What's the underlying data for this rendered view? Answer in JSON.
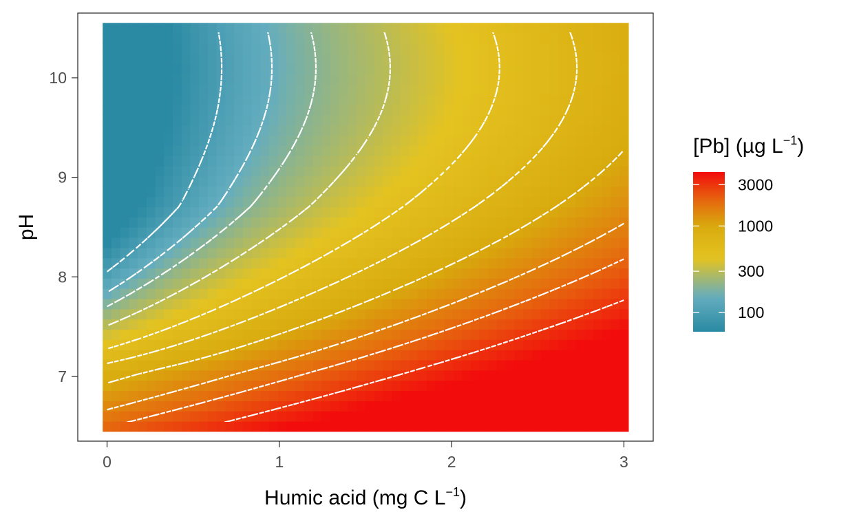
{
  "chart_data": {
    "type": "heatmap",
    "xlabel": "Humic acid (mg C L",
    "xlabel_sup": "−1",
    "xlabel_tail": ")",
    "ylabel": "pH",
    "xlim": [
      -0.17,
      3.17
    ],
    "ylim": [
      6.35,
      10.65
    ],
    "data_x_range": [
      0,
      3
    ],
    "data_y_range": [
      6.5,
      10.5
    ],
    "x_ticks": [
      0,
      1,
      2,
      3
    ],
    "x_tick_labels": [
      "0",
      "1",
      "2",
      "3"
    ],
    "y_ticks": [
      7,
      8,
      9,
      10
    ],
    "y_tick_labels": [
      "7",
      "8",
      "9",
      "10"
    ],
    "color_scale": "log",
    "color_stops": [
      {
        "value": 60,
        "color": "#2a8aa3"
      },
      {
        "value": 150,
        "color": "#64adbf"
      },
      {
        "value": 420,
        "color": "#e4c321"
      },
      {
        "value": 1000,
        "color": "#d8aa0e"
      },
      {
        "value": 2000,
        "color": "#e6660e"
      },
      {
        "value": 4200,
        "color": "#f20c0c"
      }
    ],
    "contour_levels": [
      100,
      150,
      200,
      300,
      500,
      700,
      1000,
      1500,
      2000,
      3000
    ],
    "contour_color": "#ffffff",
    "legend": {
      "title": "[Pb] (µg L",
      "title_sup": "−1",
      "title_tail": ")",
      "placement": "right",
      "range": [
        60,
        4200
      ],
      "breaks": [
        3000,
        1000,
        300,
        100
      ],
      "labels": [
        "3000",
        "1000",
        "300",
        "100"
      ]
    },
    "grid": false
  }
}
